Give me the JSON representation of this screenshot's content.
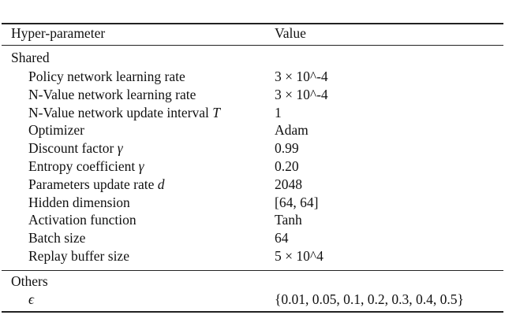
{
  "table": {
    "header": {
      "param": "Hyper-parameter",
      "value": "Value"
    },
    "sections": [
      {
        "name": "Shared",
        "rows": [
          {
            "param": "Policy network learning rate",
            "value": "3 × 10^-4"
          },
          {
            "param": "N-Value network learning rate",
            "value": "3 × 10^-4"
          },
          {
            "param": "N-Value network update interval T",
            "value": "1"
          },
          {
            "param": "Optimizer",
            "value": "Adam"
          },
          {
            "param": "Discount factor γ",
            "value": "0.99"
          },
          {
            "param": "Entropy coefficient γ",
            "value": "0.20"
          },
          {
            "param": "Parameters update rate d",
            "value": "2048"
          },
          {
            "param": "Hidden dimension",
            "value": "[64, 64]"
          },
          {
            "param": "Activation function",
            "value": "Tanh"
          },
          {
            "param": "Batch size",
            "value": "64"
          },
          {
            "param": "Replay buffer size",
            "value": "5 × 10^4"
          }
        ]
      },
      {
        "name": "Others",
        "rows": [
          {
            "param": "ϵ",
            "value": "{0.01, 0.05, 0.1, 0.2, 0.3, 0.4, 0.5}"
          }
        ]
      }
    ]
  }
}
